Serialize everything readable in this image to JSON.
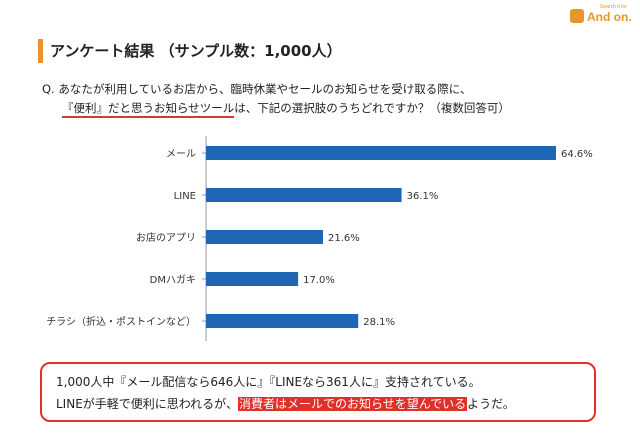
{
  "logo": {
    "tagline": "Search it for",
    "text": "And on."
  },
  "title": "アンケート結果 （サンプル数：1,000人）",
  "question": {
    "prefix": "Q.",
    "line1": "あなたが利用しているお店から、臨時休業やセールのお知らせを受け取る際に、",
    "line2_underlined": "『便利』だと思うお知らせツール",
    "line2_rest": "は、下記の選択肢のうちどれですか？（複数回答可）"
  },
  "chart_data": {
    "type": "bar",
    "orientation": "horizontal",
    "categories": [
      "メール",
      "LINE",
      "お店のアプリ",
      "DMハガキ",
      "チラシ（折込・ポストインなど）"
    ],
    "values": [
      64.6,
      36.1,
      21.6,
      17.0,
      28.1
    ],
    "data_labels": [
      "64.6%",
      "36.1%",
      "21.6%",
      "17.0%",
      "28.1%"
    ],
    "unit": "%",
    "xlim": [
      0,
      64.6
    ],
    "bar_color": "#1f66b4",
    "grid": false,
    "legend": false
  },
  "summary": {
    "line1": "1,000人中『メール配信なら646人に』『LINEなら361人に』支持されている。",
    "line2_before": "LINEが手軽で便利に思われるが、",
    "line2_highlight": "消費者はメールでのお知らせを望んでいる",
    "line2_after": "ようだ。",
    "border_color": "#e0302a"
  }
}
